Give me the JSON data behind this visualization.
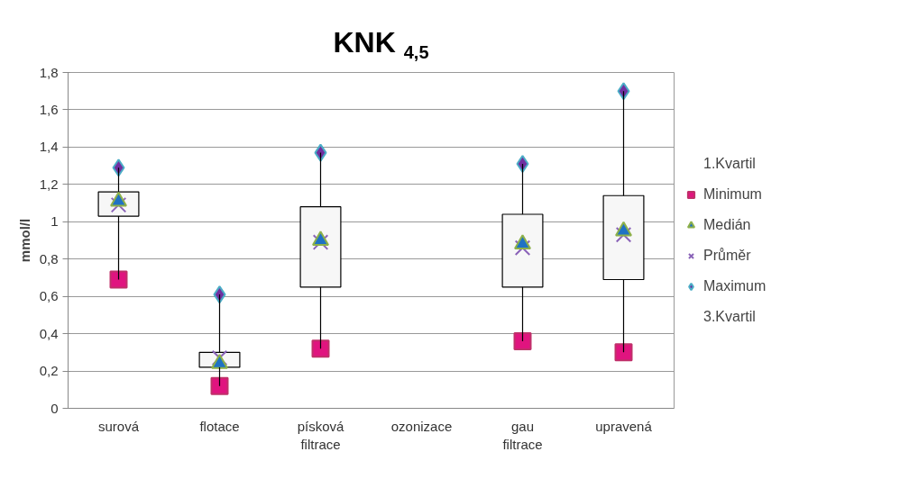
{
  "chart_data": {
    "type": "candlestick",
    "title": "KNK $_{4,5}$",
    "ylabel": "mmol/l",
    "categories": [
      "surová",
      "flotace",
      "písková filtrace",
      "ozonizace",
      "gau filtrace",
      "upravená"
    ],
    "ohlc": [
      [
        1.03,
        1.29,
        0.69,
        1.16
      ],
      [
        0.22,
        0.61,
        0.12,
        0.3
      ],
      [
        0.65,
        1.37,
        0.32,
        1.08
      ],
      null,
      [
        0.65,
        1.31,
        0.36,
        1.04
      ],
      [
        0.69,
        1.7,
        0.3,
        1.14
      ]
    ],
    "series": [
      {
        "name": "Minimum",
        "type": "scatter",
        "marker": "square",
        "color": "#e0147f",
        "values": [
          0.69,
          0.12,
          0.32,
          null,
          0.36,
          0.3
        ]
      },
      {
        "name": "Medián",
        "type": "scatter",
        "marker": "triangle",
        "color": "#1f72c4",
        "values": [
          1.11,
          0.24,
          0.9,
          null,
          0.88,
          0.95
        ]
      },
      {
        "name": "Průměr",
        "type": "scatter",
        "marker": "cross",
        "color": "#8a63b8",
        "values": [
          1.09,
          0.27,
          0.89,
          null,
          0.86,
          0.93
        ]
      },
      {
        "name": "Maximum",
        "type": "scatter",
        "marker": "diamond",
        "color": "#7030a0",
        "values": [
          1.29,
          0.61,
          1.37,
          null,
          1.31,
          1.7
        ]
      }
    ],
    "annotations": [
      "1.Kvartil",
      "3.Kvartil"
    ],
    "ylim": [
      0,
      1.8
    ],
    "yticks": [
      {
        "value": 0,
        "label": "0"
      },
      {
        "value": 0.2,
        "label": "0,2"
      },
      {
        "value": 0.4,
        "label": "0,4"
      },
      {
        "value": 0.6,
        "label": "0,6"
      },
      {
        "value": 0.8,
        "label": "0,8"
      },
      {
        "value": 1,
        "label": "1"
      },
      {
        "value": 1.2,
        "label": "1,2"
      },
      {
        "value": 1.4,
        "label": "1,4"
      },
      {
        "value": 1.6,
        "label": "1,6"
      },
      {
        "value": 1.8,
        "label": "1,8"
      }
    ],
    "grid": "y",
    "legend": "right"
  }
}
